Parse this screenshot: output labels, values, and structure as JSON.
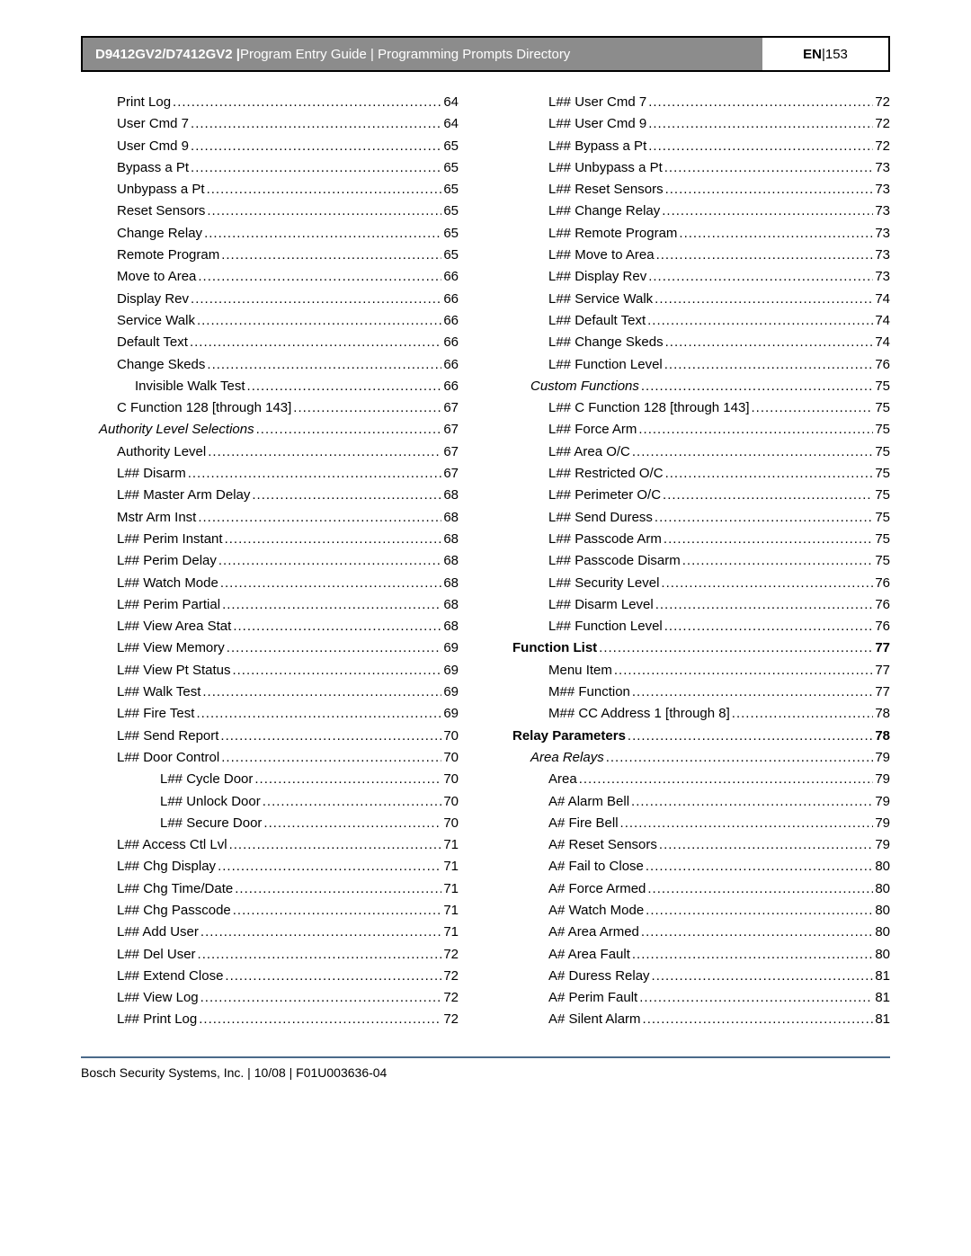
{
  "header": {
    "model": "D9412GV2/D7412GV2 |",
    "subtitle": " Program Entry Guide | Programming Prompts Directory",
    "lang": "EN",
    "sep": " | ",
    "pageno": "153"
  },
  "footer": {
    "text": "Bosch Security Systems, Inc. | 10/08 | F01U003636-04"
  },
  "col1": [
    {
      "label": "Print Log",
      "page": "64",
      "indent": 2
    },
    {
      "label": "User Cmd 7",
      "page": "64",
      "indent": 2
    },
    {
      "label": "User Cmd 9",
      "page": "65",
      "indent": 2
    },
    {
      "label": "Bypass a Pt",
      "page": "65",
      "indent": 2
    },
    {
      "label": "Unbypass a Pt",
      "page": "65",
      "indent": 2
    },
    {
      "label": "Reset Sensors",
      "page": "65",
      "indent": 2
    },
    {
      "label": "Change Relay",
      "page": "65",
      "indent": 2
    },
    {
      "label": "Remote Program",
      "page": "65",
      "indent": 2
    },
    {
      "label": "Move to Area",
      "page": "66",
      "indent": 2
    },
    {
      "label": "Display Rev",
      "page": "66",
      "indent": 2
    },
    {
      "label": "Service Walk",
      "page": "66",
      "indent": 2
    },
    {
      "label": "Default Text",
      "page": "66",
      "indent": 2
    },
    {
      "label": "Change Skeds",
      "page": "66",
      "indent": 2
    },
    {
      "label": "Invisible Walk Test",
      "page": "66",
      "indent": 3
    },
    {
      "label": "C Function 128 [through 143]",
      "page": "67",
      "indent": 2
    },
    {
      "label": "Authority Level Selections",
      "page": "67",
      "indent": 1,
      "style": "italic"
    },
    {
      "label": "Authority Level",
      "page": "67",
      "indent": 2
    },
    {
      "label": "L## Disarm",
      "page": "67",
      "indent": 2
    },
    {
      "label": "L## Master Arm Delay",
      "page": "68",
      "indent": 2
    },
    {
      "label": "Mstr Arm Inst",
      "page": "68",
      "indent": 2
    },
    {
      "label": "L## Perim Instant",
      "page": "68",
      "indent": 2
    },
    {
      "label": "L## Perim Delay",
      "page": "68",
      "indent": 2
    },
    {
      "label": "L## Watch Mode",
      "page": "68",
      "indent": 2
    },
    {
      "label": "L## Perim Partial",
      "page": "68",
      "indent": 2
    },
    {
      "label": "L## View Area Stat",
      "page": "68",
      "indent": 2
    },
    {
      "label": "L## View Memory",
      "page": "69",
      "indent": 2
    },
    {
      "label": "L## View Pt Status",
      "page": "69",
      "indent": 2
    },
    {
      "label": "L## Walk Test",
      "page": "69",
      "indent": 2
    },
    {
      "label": "L## Fire Test",
      "page": "69",
      "indent": 2
    },
    {
      "label": "L## Send Report",
      "page": "70",
      "indent": 2
    },
    {
      "label": "L## Door Control",
      "page": "70",
      "indent": 2
    },
    {
      "label": "L## Cycle Door",
      "page": "70",
      "indent": 4
    },
    {
      "label": "L## Unlock Door",
      "page": "70",
      "indent": 4
    },
    {
      "label": "L## Secure Door",
      "page": "70",
      "indent": 4
    },
    {
      "label": "L## Access Ctl Lvl",
      "page": "71",
      "indent": 2
    },
    {
      "label": "L## Chg Display",
      "page": "71",
      "indent": 2
    },
    {
      "label": "L## Chg Time/Date",
      "page": "71",
      "indent": 2
    },
    {
      "label": "L## Chg Passcode",
      "page": "71",
      "indent": 2
    },
    {
      "label": "L## Add User",
      "page": "71",
      "indent": 2
    },
    {
      "label": "L## Del User",
      "page": "72",
      "indent": 2
    },
    {
      "label": "L## Extend Close",
      "page": "72",
      "indent": 2
    },
    {
      "label": "L## View Log",
      "page": "72",
      "indent": 2
    },
    {
      "label": "L## Print Log",
      "page": "72",
      "indent": 2
    }
  ],
  "col2": [
    {
      "label": "L## User Cmd 7",
      "page": "72",
      "indent": 2
    },
    {
      "label": "L## User Cmd 9",
      "page": "72",
      "indent": 2
    },
    {
      "label": "L## Bypass a Pt",
      "page": "72",
      "indent": 2
    },
    {
      "label": "L## Unbypass a Pt",
      "page": "73",
      "indent": 2
    },
    {
      "label": "L## Reset Sensors",
      "page": "73",
      "indent": 2
    },
    {
      "label": "L## Change Relay",
      "page": "73",
      "indent": 2
    },
    {
      "label": "L## Remote Program",
      "page": "73",
      "indent": 2
    },
    {
      "label": "L## Move to Area",
      "page": "73",
      "indent": 2
    },
    {
      "label": "L## Display Rev",
      "page": "73",
      "indent": 2
    },
    {
      "label": "L## Service Walk",
      "page": "74",
      "indent": 2
    },
    {
      "label": "L## Default Text",
      "page": "74",
      "indent": 2
    },
    {
      "label": "L## Change Skeds",
      "page": "74",
      "indent": 2
    },
    {
      "label": "L## Function Level",
      "page": "76",
      "indent": 2
    },
    {
      "label": "Custom Functions",
      "page": "75",
      "indent": 1,
      "style": "italic"
    },
    {
      "label": "L## C Function 128 [through 143]",
      "page": "75",
      "indent": 2
    },
    {
      "label": "L## Force Arm",
      "page": "75",
      "indent": 2
    },
    {
      "label": "L## Area O/C",
      "page": "75",
      "indent": 2
    },
    {
      "label": "L## Restricted O/C",
      "page": "75",
      "indent": 2
    },
    {
      "label": "L## Perimeter O/C",
      "page": "75",
      "indent": 2
    },
    {
      "label": "L## Send Duress",
      "page": "75",
      "indent": 2
    },
    {
      "label": "L## Passcode Arm",
      "page": "75",
      "indent": 2
    },
    {
      "label": "L## Passcode Disarm",
      "page": "75",
      "indent": 2
    },
    {
      "label": "L## Security Level",
      "page": "76",
      "indent": 2
    },
    {
      "label": "L## Disarm Level",
      "page": "76",
      "indent": 2
    },
    {
      "label": "L## Function Level",
      "page": "76",
      "indent": 2
    },
    {
      "label": "Function List",
      "page": "77",
      "indent": 0,
      "style": "bold"
    },
    {
      "label": "Menu Item",
      "page": "77",
      "indent": 2
    },
    {
      "label": "M## Function",
      "page": "77",
      "indent": 2
    },
    {
      "label": "M## CC Address 1 [through 8]",
      "page": "78",
      "indent": 2
    },
    {
      "label": "Relay Parameters",
      "page": "78",
      "indent": 0,
      "style": "bold"
    },
    {
      "label": "Area Relays",
      "page": "79",
      "indent": 1,
      "style": "italic"
    },
    {
      "label": "Area",
      "page": "79",
      "indent": 2
    },
    {
      "label": "A# Alarm Bell",
      "page": "79",
      "indent": 2
    },
    {
      "label": "A# Fire Bell",
      "page": "79",
      "indent": 2
    },
    {
      "label": "A# Reset Sensors",
      "page": "79",
      "indent": 2
    },
    {
      "label": "A# Fail to Close",
      "page": "80",
      "indent": 2
    },
    {
      "label": "A# Force Armed",
      "page": "80",
      "indent": 2
    },
    {
      "label": "A# Watch Mode",
      "page": "80",
      "indent": 2
    },
    {
      "label": "A# Area Armed",
      "page": "80",
      "indent": 2
    },
    {
      "label": "A# Area Fault",
      "page": "80",
      "indent": 2
    },
    {
      "label": "A# Duress Relay",
      "page": "81",
      "indent": 2
    },
    {
      "label": "A# Perim Fault",
      "page": "81",
      "indent": 2
    },
    {
      "label": "A# Silent Alarm",
      "page": "81",
      "indent": 2
    }
  ]
}
